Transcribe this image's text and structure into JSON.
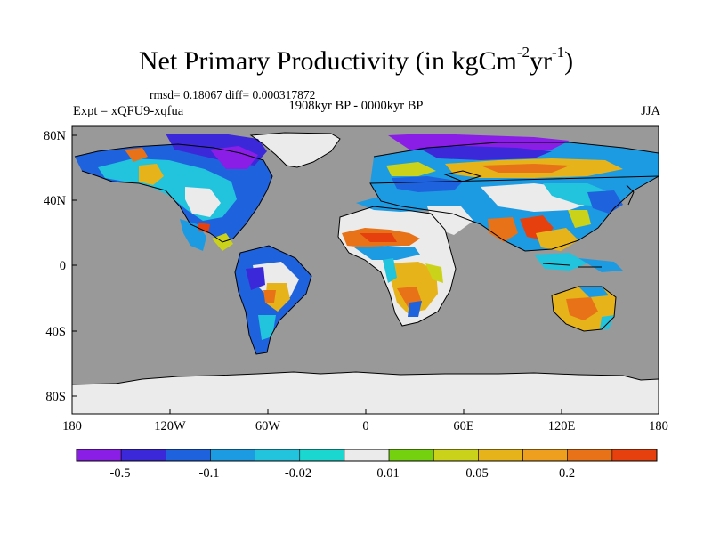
{
  "title": {
    "prefix": "Net Primary Productivity (in kgCm",
    "sup1": "-2",
    "mid": "yr",
    "sup2": "-1",
    "suffix": ")"
  },
  "stats_text": "rmsd= 0.18067 diff= 0.000317872",
  "period_text": "1908kyr BP - 0000kyr BP",
  "experiment_text": "Expt = xQFU9-xqfua",
  "season_text": "JJA",
  "map": {
    "ocean_color": "#999999",
    "no_data_color": "#ebebeb",
    "lat_labels": [
      "80N",
      "40N",
      "0",
      "40S",
      "80S"
    ],
    "lon_labels": [
      "180",
      "120W",
      "60W",
      "0",
      "60E",
      "120E",
      "180"
    ]
  },
  "colorbar": {
    "colors": [
      "#8a1ee6",
      "#3b28d9",
      "#1e62de",
      "#1d9be2",
      "#22c3dc",
      "#1ad7cf",
      "#ebebeb",
      "#74d10f",
      "#cbd21a",
      "#e6b41a",
      "#ee9f1e",
      "#e87218",
      "#e6400f"
    ],
    "labels": [
      "-0.5",
      "-0.1",
      "-0.02",
      "0.01",
      "0.05",
      "0.2"
    ]
  }
}
